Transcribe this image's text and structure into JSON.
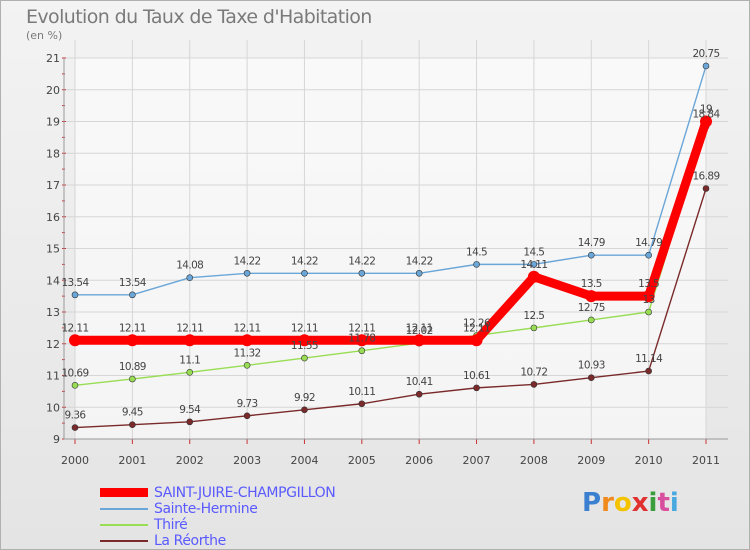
{
  "chart_data": {
    "type": "line",
    "title": "Evolution du Taux de Taxe d'Habitation",
    "subtitle": "(en %)",
    "x": [
      "2000",
      "2001",
      "2002",
      "2003",
      "2004",
      "2005",
      "2006",
      "2007",
      "2008",
      "2009",
      "2010",
      "2011"
    ],
    "ylim": [
      9,
      21
    ],
    "yticks": [
      "9",
      "10",
      "11",
      "12",
      "13",
      "14",
      "15",
      "16",
      "17",
      "18",
      "19",
      "20",
      "21"
    ],
    "grid": true,
    "legend_position": "bottom-left",
    "series": [
      {
        "name": "SAINT-JUIRE-CHAMPGILLON",
        "color": "#ff0000",
        "values": [
          12.11,
          12.11,
          12.11,
          12.11,
          12.11,
          12.11,
          12.11,
          12.11,
          14.11,
          13.5,
          13.5,
          19
        ],
        "labels": [
          "12.11",
          "12.11",
          "12.11",
          "12.11",
          "12.11",
          "12.11",
          "12.11",
          "12.11",
          "14.11",
          "13.5",
          "13.5",
          "19"
        ]
      },
      {
        "name": "Sainte-Hermine",
        "color": "#6aa6d8",
        "values": [
          13.54,
          13.54,
          14.08,
          14.22,
          14.22,
          14.22,
          14.22,
          14.5,
          14.5,
          14.79,
          14.79,
          20.75
        ],
        "labels": [
          "13.54",
          "13.54",
          "14.08",
          "14.22",
          "14.22",
          "14.22",
          "14.22",
          "14.5",
          "14.5",
          "14.79",
          "14.79",
          "20.75"
        ]
      },
      {
        "name": "Thiré",
        "color": "#99dd55",
        "values": [
          10.69,
          10.89,
          11.1,
          11.32,
          11.55,
          11.78,
          12.02,
          12.26,
          12.5,
          12.75,
          13,
          18.84
        ],
        "labels": [
          "10.69",
          "10.89",
          "11.1",
          "11.32",
          "11.55",
          "11.78",
          "12.02",
          "12.26",
          "12.5",
          "12.75",
          "13",
          "18.84"
        ]
      },
      {
        "name": "La Réorthe",
        "color": "#7a2a2a",
        "values": [
          9.36,
          9.45,
          9.54,
          9.73,
          9.92,
          10.11,
          10.41,
          10.61,
          10.72,
          10.93,
          11.14,
          16.89
        ],
        "labels": [
          "9.36",
          "9.45",
          "9.54",
          "9.73",
          "9.92",
          "10.11",
          "10.41",
          "10.61",
          "10.72",
          "10.93",
          "11.14",
          "16.89"
        ]
      }
    ]
  },
  "legend": {
    "items": [
      {
        "label": "SAINT-JUIRE-CHAMPGILLON",
        "color": "#ff0000"
      },
      {
        "label": "Sainte-Hermine",
        "color": "#6aa6d8"
      },
      {
        "label": "Thiré",
        "color": "#99dd55"
      },
      {
        "label": "La Réorthe",
        "color": "#7a2a2a"
      }
    ]
  },
  "logo": {
    "letters": [
      "P",
      "r",
      "o",
      "x",
      "i",
      "t",
      "i"
    ],
    "colors": [
      "#3a7fd0",
      "#f08a1c",
      "#f5c200",
      "#e03030",
      "#3a9f3a",
      "#d94fa0",
      "#4aa8e0"
    ]
  }
}
